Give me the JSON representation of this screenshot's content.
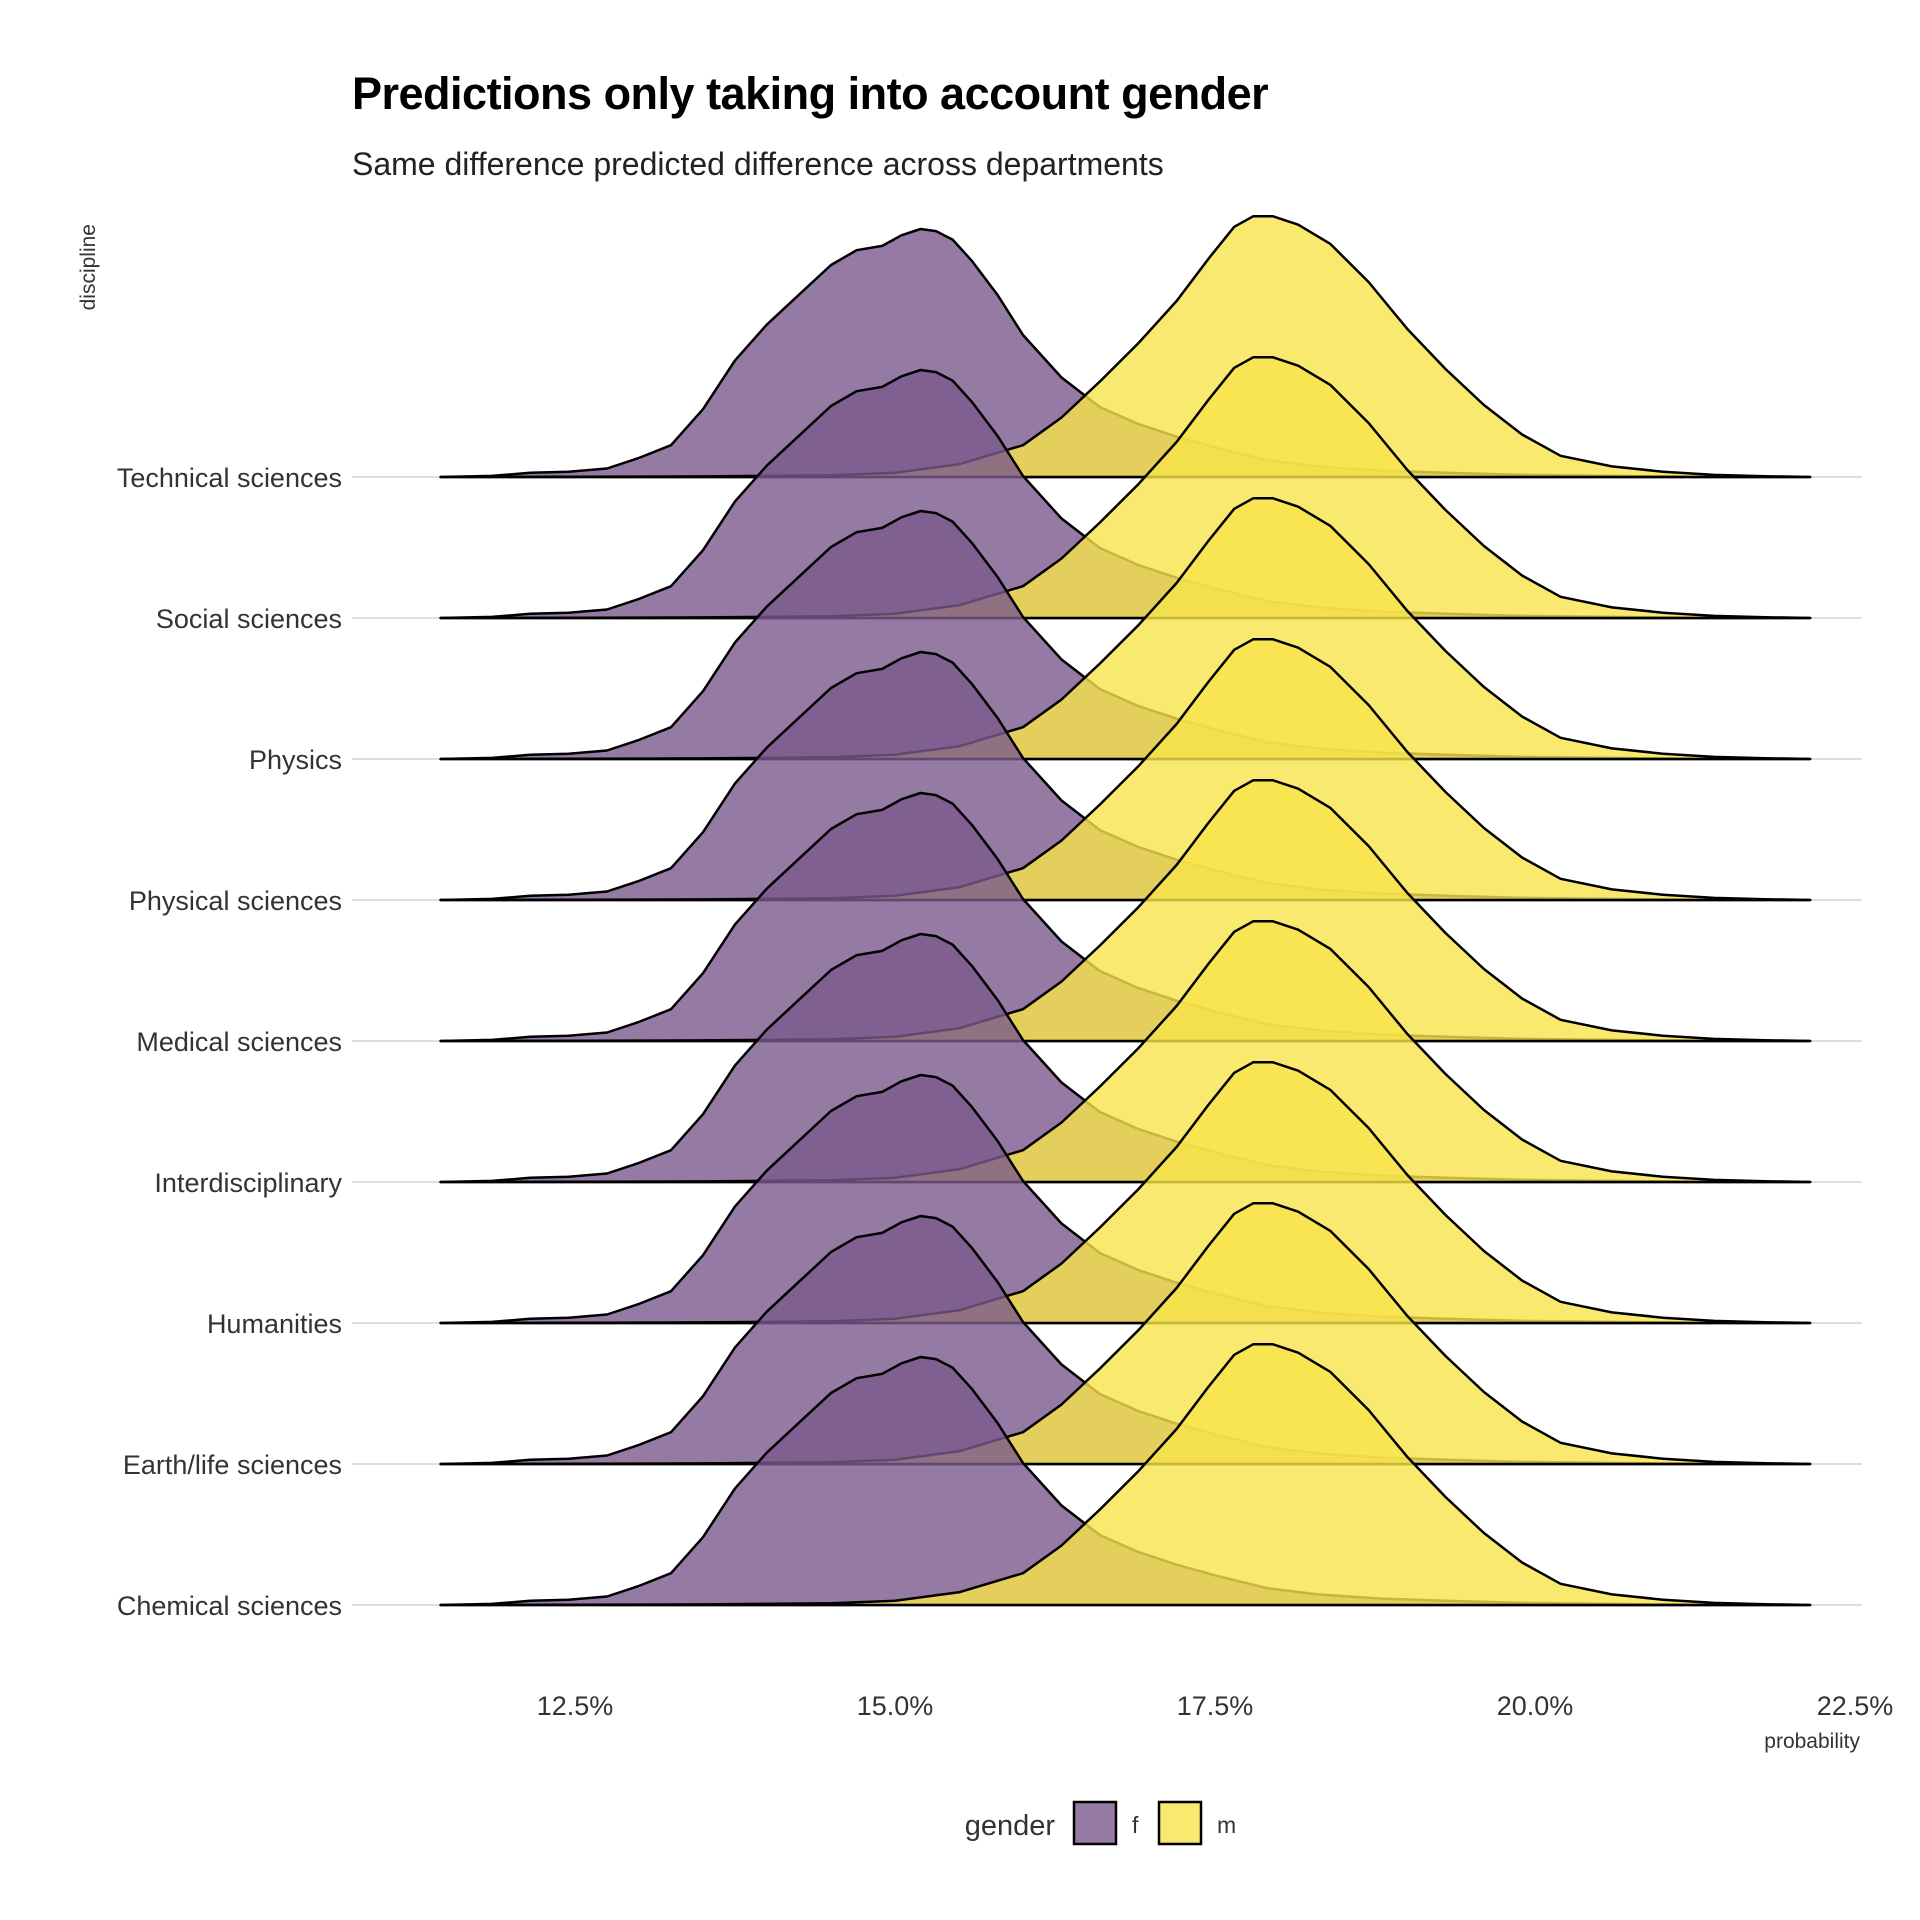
{
  "title": "Predictions only taking into account gender",
  "subtitle": "Same difference predicted difference across departments",
  "chart_data": {
    "type": "ridgeline-density",
    "title": "Predictions only taking into account gender",
    "subtitle": "Same difference predicted difference across departments",
    "xlabel": "probability",
    "ylabel": "discipline",
    "xlim": [
      0.115,
      0.225
    ],
    "x_ticks": [
      0.125,
      0.15,
      0.175,
      0.2,
      0.225
    ],
    "x_tick_labels": [
      "12.5%",
      "15.0%",
      "17.5%",
      "20.0%",
      "22.5%"
    ],
    "categories": [
      "Technical sciences",
      "Social sciences",
      "Physics",
      "Physical sciences",
      "Medical sciences",
      "Interdisciplinary",
      "Humanities",
      "Earth/life sciences",
      "Chemical sciences"
    ],
    "legend": {
      "title": "gender",
      "position": "bottom",
      "entries": [
        "f",
        "m"
      ]
    },
    "grid": true,
    "series": [
      {
        "name": "f",
        "color": "#7b5a8c",
        "note_same_for_all_disciplines": true,
        "x": [
          0.1145,
          0.1185,
          0.1215,
          0.1245,
          0.1275,
          0.13,
          0.1325,
          0.135,
          0.1375,
          0.14,
          0.1425,
          0.145,
          0.147,
          0.149,
          0.1505,
          0.152,
          0.1532,
          0.1545,
          0.156,
          0.158,
          0.16,
          0.163,
          0.166,
          0.169,
          0.172,
          0.175,
          0.179,
          0.183,
          0.188,
          0.193,
          0.199,
          0.206,
          0.213,
          0.2215
        ],
        "density": [
          0.0,
          0.005,
          0.02,
          0.025,
          0.04,
          0.09,
          0.15,
          0.32,
          0.55,
          0.72,
          0.86,
          1.0,
          1.07,
          1.09,
          1.14,
          1.17,
          1.16,
          1.12,
          1.02,
          0.86,
          0.67,
          0.47,
          0.33,
          0.25,
          0.19,
          0.14,
          0.08,
          0.05,
          0.03,
          0.02,
          0.01,
          0.005,
          0.002,
          0.0
        ]
      },
      {
        "name": "m",
        "color": "#f7e44a",
        "note_same_for_all_disciplines": true,
        "x": [
          0.1145,
          0.125,
          0.135,
          0.145,
          0.15,
          0.155,
          0.16,
          0.163,
          0.166,
          0.169,
          0.172,
          0.1745,
          0.1765,
          0.178,
          0.1795,
          0.1815,
          0.184,
          0.187,
          0.19,
          0.193,
          0.196,
          0.199,
          0.202,
          0.206,
          0.21,
          0.214,
          0.218,
          0.2215
        ],
        "density": [
          0.0,
          0.001,
          0.003,
          0.008,
          0.02,
          0.06,
          0.15,
          0.28,
          0.45,
          0.63,
          0.83,
          1.03,
          1.18,
          1.23,
          1.23,
          1.19,
          1.1,
          0.92,
          0.7,
          0.51,
          0.34,
          0.2,
          0.1,
          0.05,
          0.025,
          0.01,
          0.004,
          0.0
        ]
      }
    ]
  }
}
